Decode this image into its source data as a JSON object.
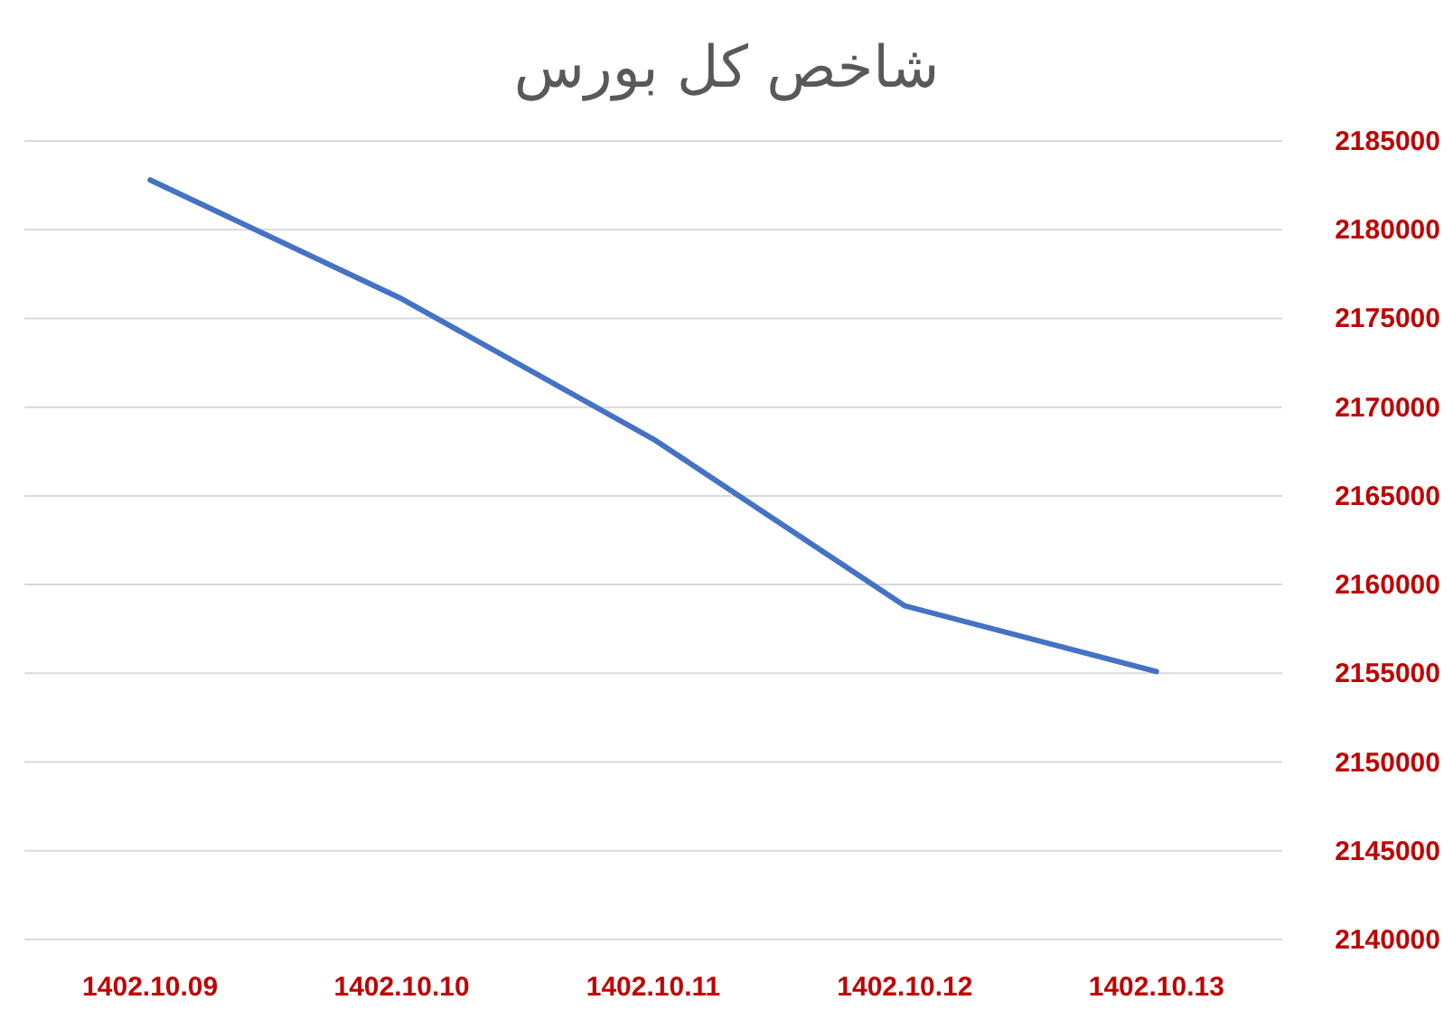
{
  "chart_data": {
    "type": "line",
    "title": "شاخص کل بورس",
    "categories": [
      "1402.10.09",
      "1402.10.10",
      "1402.10.11",
      "1402.10.12",
      "1402.10.13"
    ],
    "series": [
      {
        "color": "#4472c4",
        "values": [
          2182800,
          2176100,
          2168200,
          2158800,
          2155100
        ]
      }
    ],
    "ylim": [
      2140000,
      2185000
    ],
    "yticks": [
      2140000,
      2145000,
      2150000,
      2155000,
      2160000,
      2165000,
      2170000,
      2175000,
      2180000,
      2185000
    ],
    "grid": "y",
    "marker": "none",
    "line_style": "solid"
  }
}
